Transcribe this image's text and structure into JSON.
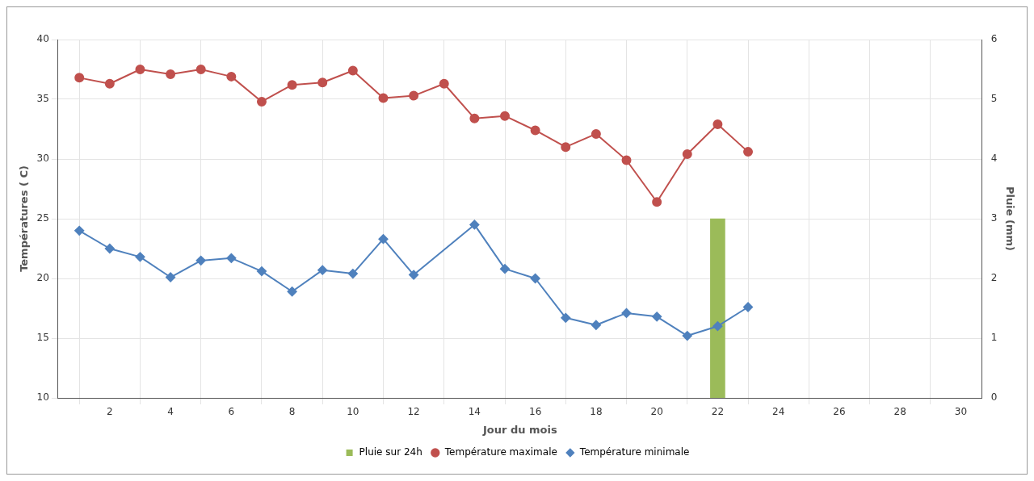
{
  "chart_data": {
    "type": "line",
    "xlabel": "Jour du mois",
    "ylabel": "Températures ( C)",
    "y2label": "Pluie (mm)",
    "xlim": [
      0.3,
      30.7
    ],
    "xticks": [
      2,
      4,
      6,
      8,
      10,
      12,
      14,
      16,
      18,
      20,
      22,
      24,
      26,
      28,
      30
    ],
    "ylim": [
      10,
      40
    ],
    "yticks": [
      10,
      15,
      20,
      25,
      30,
      35,
      40
    ],
    "y2lim": [
      0,
      6
    ],
    "y2ticks": [
      0,
      1,
      2,
      3,
      4,
      5,
      6
    ],
    "grid": true,
    "legend": "bottom",
    "marker": "circle",
    "series": [
      {
        "name": "Pluie sur 24h",
        "type": "bar",
        "axis": "y2",
        "color": "#9bbb59",
        "x": [
          22
        ],
        "values": [
          3
        ]
      },
      {
        "name": "Température maximale",
        "color": "#c0504d",
        "x": [
          1,
          2,
          3,
          4,
          5,
          6,
          7,
          8,
          9,
          10,
          11,
          12,
          13,
          14,
          15,
          16,
          17,
          18,
          19,
          20,
          21,
          22,
          23
        ],
        "values": [
          36.8,
          36.3,
          37.5,
          37.1,
          37.5,
          36.9,
          34.8,
          36.2,
          36.4,
          37.4,
          35.1,
          35.3,
          36.3,
          33.4,
          33.6,
          32.4,
          31.0,
          32.1,
          29.9,
          26.4,
          30.4,
          32.9,
          30.6
        ]
      },
      {
        "name": "Température minimale",
        "color": "#4f81bd",
        "marker": "diamond",
        "x": [
          1,
          2,
          3,
          4,
          5,
          6,
          7,
          8,
          9,
          10,
          11,
          12,
          14,
          15,
          16,
          17,
          18,
          19,
          20,
          21,
          22,
          23
        ],
        "values": [
          24.0,
          22.5,
          21.8,
          20.1,
          21.5,
          21.7,
          20.6,
          18.9,
          20.7,
          20.4,
          23.3,
          20.3,
          24.5,
          20.8,
          20.0,
          16.7,
          16.1,
          17.1,
          16.8,
          15.2,
          16.0,
          17.6
        ]
      }
    ]
  }
}
